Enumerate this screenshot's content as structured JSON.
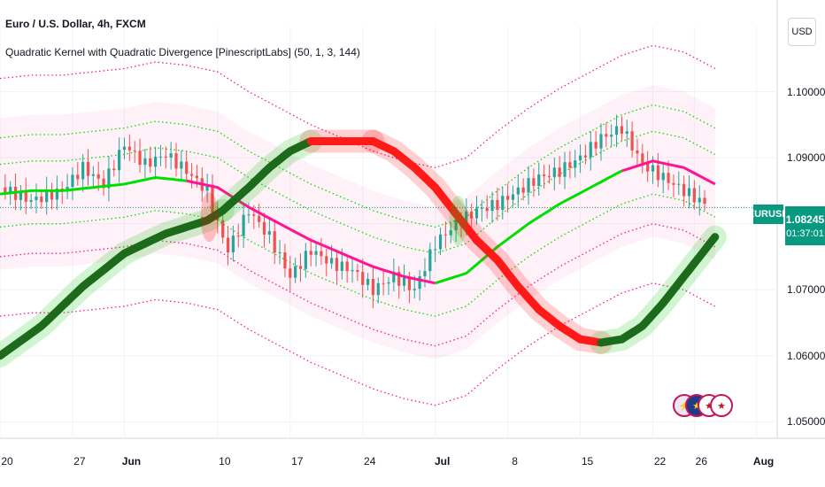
{
  "header": {
    "title": "Euro / U.S. Dollar, 4h, FXCM",
    "indicator": "Quadratic Kernel with Quadratic Divergence [PinescriptLabs] (50, 1, 3, 144)",
    "currency": "USD"
  },
  "price_tag": {
    "symbol": "EURUSD",
    "price": "1.08245",
    "countdown": "01:37:01"
  },
  "events": [
    {
      "icon": "lightning-icon",
      "glyph": "⚡"
    },
    {
      "icon": "eu-flag-icon",
      "glyph": "★"
    },
    {
      "icon": "us-flag-icon",
      "glyph": "★"
    },
    {
      "icon": "us-flag-icon",
      "glyph": "★"
    }
  ],
  "colors": {
    "green": "#00e000",
    "dark_green": "#1b6b1b",
    "red": "#ff1a1a",
    "pink": "#ff1493",
    "teal": "#089981"
  },
  "chart_data": {
    "type": "line",
    "ylim": [
      1.0475,
      1.1045
    ],
    "y_ticks": [
      "1.10000",
      "1.09000",
      "1.08000",
      "1.07000",
      "1.06000",
      "1.05000"
    ],
    "y_tick_values": [
      1.1,
      1.09,
      1.08,
      1.07,
      1.06,
      1.05
    ],
    "x_ticks": [
      {
        "label": "20",
        "t": 0,
        "bold": false
      },
      {
        "label": "27",
        "t": 7,
        "bold": false
      },
      {
        "label": "Jun",
        "t": 12,
        "bold": true
      },
      {
        "label": "10",
        "t": 21,
        "bold": false
      },
      {
        "label": "17",
        "t": 28,
        "bold": false
      },
      {
        "label": "24",
        "t": 35,
        "bold": false
      },
      {
        "label": "Jul",
        "t": 42,
        "bold": true
      },
      {
        "label": "8",
        "t": 49,
        "bold": false
      },
      {
        "label": "15",
        "t": 56,
        "bold": false
      },
      {
        "label": "22",
        "t": 63,
        "bold": false
      },
      {
        "label": "26",
        "t": 67,
        "bold": false
      },
      {
        "label": "Aug",
        "t": 73,
        "bold": true
      }
    ],
    "price_line": 1.08245,
    "price": {
      "t": [
        0,
        3,
        6,
        8,
        10,
        12,
        14,
        16,
        18,
        20,
        21,
        22,
        24,
        26,
        28,
        30,
        32,
        34,
        36,
        38,
        40,
        42,
        44,
        46,
        48,
        50,
        52,
        54,
        56,
        58,
        60,
        62,
        64,
        66,
        68
      ],
      "v": [
        1.0855,
        1.0835,
        1.085,
        1.0885,
        1.086,
        1.092,
        1.089,
        1.0905,
        1.088,
        1.085,
        1.08,
        1.076,
        1.082,
        1.078,
        1.072,
        1.076,
        1.074,
        1.073,
        1.07,
        1.072,
        1.07,
        1.077,
        1.08,
        1.082,
        1.083,
        1.085,
        1.087,
        1.088,
        1.09,
        1.093,
        1.0945,
        1.089,
        1.087,
        1.085,
        1.083
      ]
    },
    "series": [
      {
        "values_t": [
          0,
          3,
          6,
          9,
          12,
          15,
          18,
          21,
          24,
          27,
          30,
          33,
          36,
          39,
          42,
          45,
          48,
          51,
          54,
          57,
          60,
          63,
          66,
          69
        ],
        "values": [
          1.0845,
          1.085,
          1.085,
          1.0855,
          1.086,
          1.087,
          1.0865,
          1.0855,
          1.0825,
          1.08,
          1.0775,
          1.0755,
          1.0735,
          1.072,
          1.071,
          1.0725,
          1.0765,
          1.08,
          1.083,
          1.0855,
          1.088,
          1.0895,
          1.0885,
          1.086
        ]
      },
      {
        "values_t": [
          0,
          4,
          8,
          12,
          16,
          20,
          21.5,
          24,
          26,
          28,
          30,
          32,
          34,
          36,
          38,
          40,
          42,
          44,
          46,
          48,
          50,
          52,
          54,
          56,
          58,
          60,
          62,
          64,
          66,
          68,
          69
        ],
        "values": [
          1.06,
          1.0645,
          1.0705,
          1.0755,
          1.0785,
          1.0805,
          1.082,
          1.0855,
          1.0885,
          1.091,
          1.0925,
          1.0925,
          1.0925,
          1.0925,
          1.091,
          1.0885,
          1.0855,
          1.0815,
          1.0775,
          1.0745,
          1.0705,
          1.067,
          1.0645,
          1.0625,
          1.062,
          1.0625,
          1.0645,
          1.068,
          1.072,
          1.076,
          1.078
        ]
      }
    ]
  }
}
